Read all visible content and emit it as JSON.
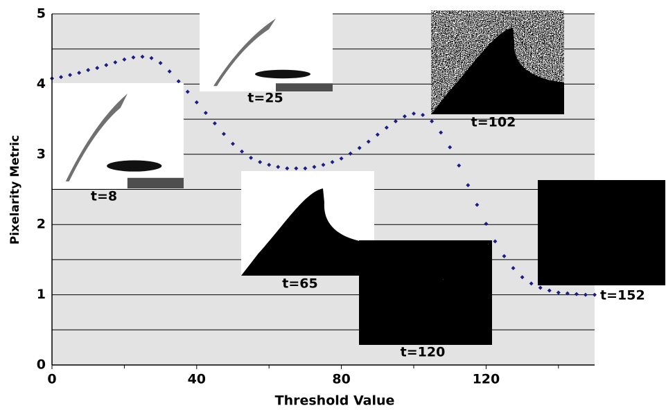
{
  "chart_data": {
    "type": "scatter",
    "xlabel": "Threshold Value",
    "ylabel": "Pixelarity Metric",
    "x": [
      0,
      2.5,
      5,
      7.5,
      10,
      12.5,
      15,
      17.5,
      20,
      22.5,
      25,
      27.5,
      30,
      32.5,
      35,
      37.5,
      40,
      42.5,
      45,
      47.5,
      50,
      52.5,
      55,
      57.5,
      60,
      62.5,
      65,
      67.5,
      70,
      72.5,
      75,
      77.5,
      80,
      82.5,
      85,
      87.5,
      90,
      92.5,
      95,
      97.5,
      100,
      102.5,
      105,
      107.5,
      110,
      112.5,
      115,
      117.5,
      120,
      122.5,
      125,
      127.5,
      130,
      132.5,
      135,
      137.5,
      140,
      142.5,
      145,
      147.5,
      150
    ],
    "values": [
      4.08,
      4.1,
      4.13,
      4.16,
      4.2,
      4.23,
      4.27,
      4.31,
      4.35,
      4.38,
      4.39,
      4.37,
      4.3,
      4.18,
      4.04,
      3.89,
      3.74,
      3.59,
      3.44,
      3.29,
      3.15,
      3.04,
      2.95,
      2.89,
      2.85,
      2.82,
      2.8,
      2.8,
      2.8,
      2.82,
      2.85,
      2.89,
      2.94,
      3.01,
      3.09,
      3.18,
      3.28,
      3.38,
      3.47,
      3.54,
      3.58,
      3.56,
      3.47,
      3.31,
      3.1,
      2.84,
      2.56,
      2.28,
      2.01,
      1.76,
      1.55,
      1.38,
      1.25,
      1.16,
      1.1,
      1.06,
      1.03,
      1.02,
      1.01,
      1.0,
      1.0
    ],
    "color": "#1c1c84",
    "xlim": [
      0,
      150
    ],
    "xticks": [
      0,
      40,
      80,
      120
    ],
    "minor_xticks": [
      20,
      60,
      100,
      140
    ],
    "ylim": [
      0,
      5
    ],
    "yticks": [
      0,
      1,
      2,
      3,
      4,
      5
    ],
    "minor_yticks": [
      0.5,
      1.5,
      2.5,
      3.5,
      4.5
    ],
    "grid": true,
    "annotations": [
      "t=8",
      "t=25",
      "t=102",
      "t=65",
      "t=120",
      "t=152"
    ]
  }
}
